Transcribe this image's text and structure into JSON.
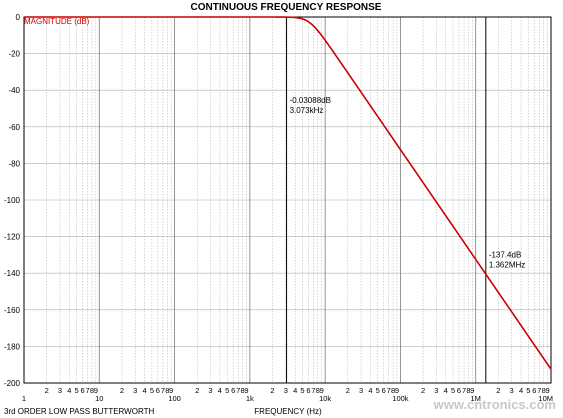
{
  "chart_data": {
    "type": "line",
    "title": "CONTINUOUS FREQUENCY RESPONSE",
    "xlabel": "FREQUENCY (Hz)",
    "ylabel": "MAGNITUDE (dB)",
    "xscale": "log",
    "xlim": [
      1,
      10000000
    ],
    "ylim": [
      -200,
      0
    ],
    "yticks": [
      0,
      -20,
      -40,
      -60,
      -80,
      -100,
      -120,
      -140,
      -160,
      -180,
      -200
    ],
    "ytick_labels": [
      "0",
      "-20",
      "-40",
      "-60",
      "-80",
      "-100",
      "-120",
      "-140",
      "-160",
      "-180",
      "-200"
    ],
    "decade_labels": [
      {
        "value": 1,
        "label": "1"
      },
      {
        "value": 10,
        "label": "10"
      },
      {
        "value": 100,
        "label": "100"
      },
      {
        "value": 1000,
        "label": "1k"
      },
      {
        "value": 10000,
        "label": "10k"
      },
      {
        "value": 100000,
        "label": "100k"
      },
      {
        "value": 1000000,
        "label": "1M"
      },
      {
        "value": 10000000,
        "label": "10M"
      }
    ],
    "minor_labels": [
      "2",
      "3",
      "4",
      "5",
      "6",
      "7",
      "8",
      "9"
    ],
    "grid": true,
    "series": [
      {
        "name": "MAGNITUDE (dB)",
        "color": "#cc0000",
        "filter_order": 3,
        "cutoff_hz": 6200,
        "x": [
          1,
          10,
          100,
          1000,
          3073,
          5000,
          6200,
          8000,
          10000,
          20000,
          50000,
          100000,
          200000,
          500000,
          1000000,
          1362000,
          2000000,
          5000000,
          10000000
        ],
        "y": [
          0,
          0,
          0,
          0,
          -0.03088,
          -0.8,
          -3.0,
          -6.3,
          -9.8,
          -22.9,
          -46.0,
          -54.1,
          -72.2,
          -96.0,
          -114.1,
          -137.4,
          -132.1,
          -156.0,
          -189.5
        ]
      }
    ],
    "annotations": [
      {
        "x": 3073,
        "y": -0.03088,
        "lines": [
          "-0.03088dB",
          "3.073kHz"
        ]
      },
      {
        "x": 1362000,
        "y": -137.4,
        "lines": [
          "-137.4dB",
          "1.362MHz"
        ]
      }
    ],
    "cursor_lines_x": [
      3073,
      1362000
    ]
  },
  "footer": {
    "left_text": "3rd ORDER LOW PASS BUTTERWORTH",
    "watermark": "www.cntronics.com"
  }
}
